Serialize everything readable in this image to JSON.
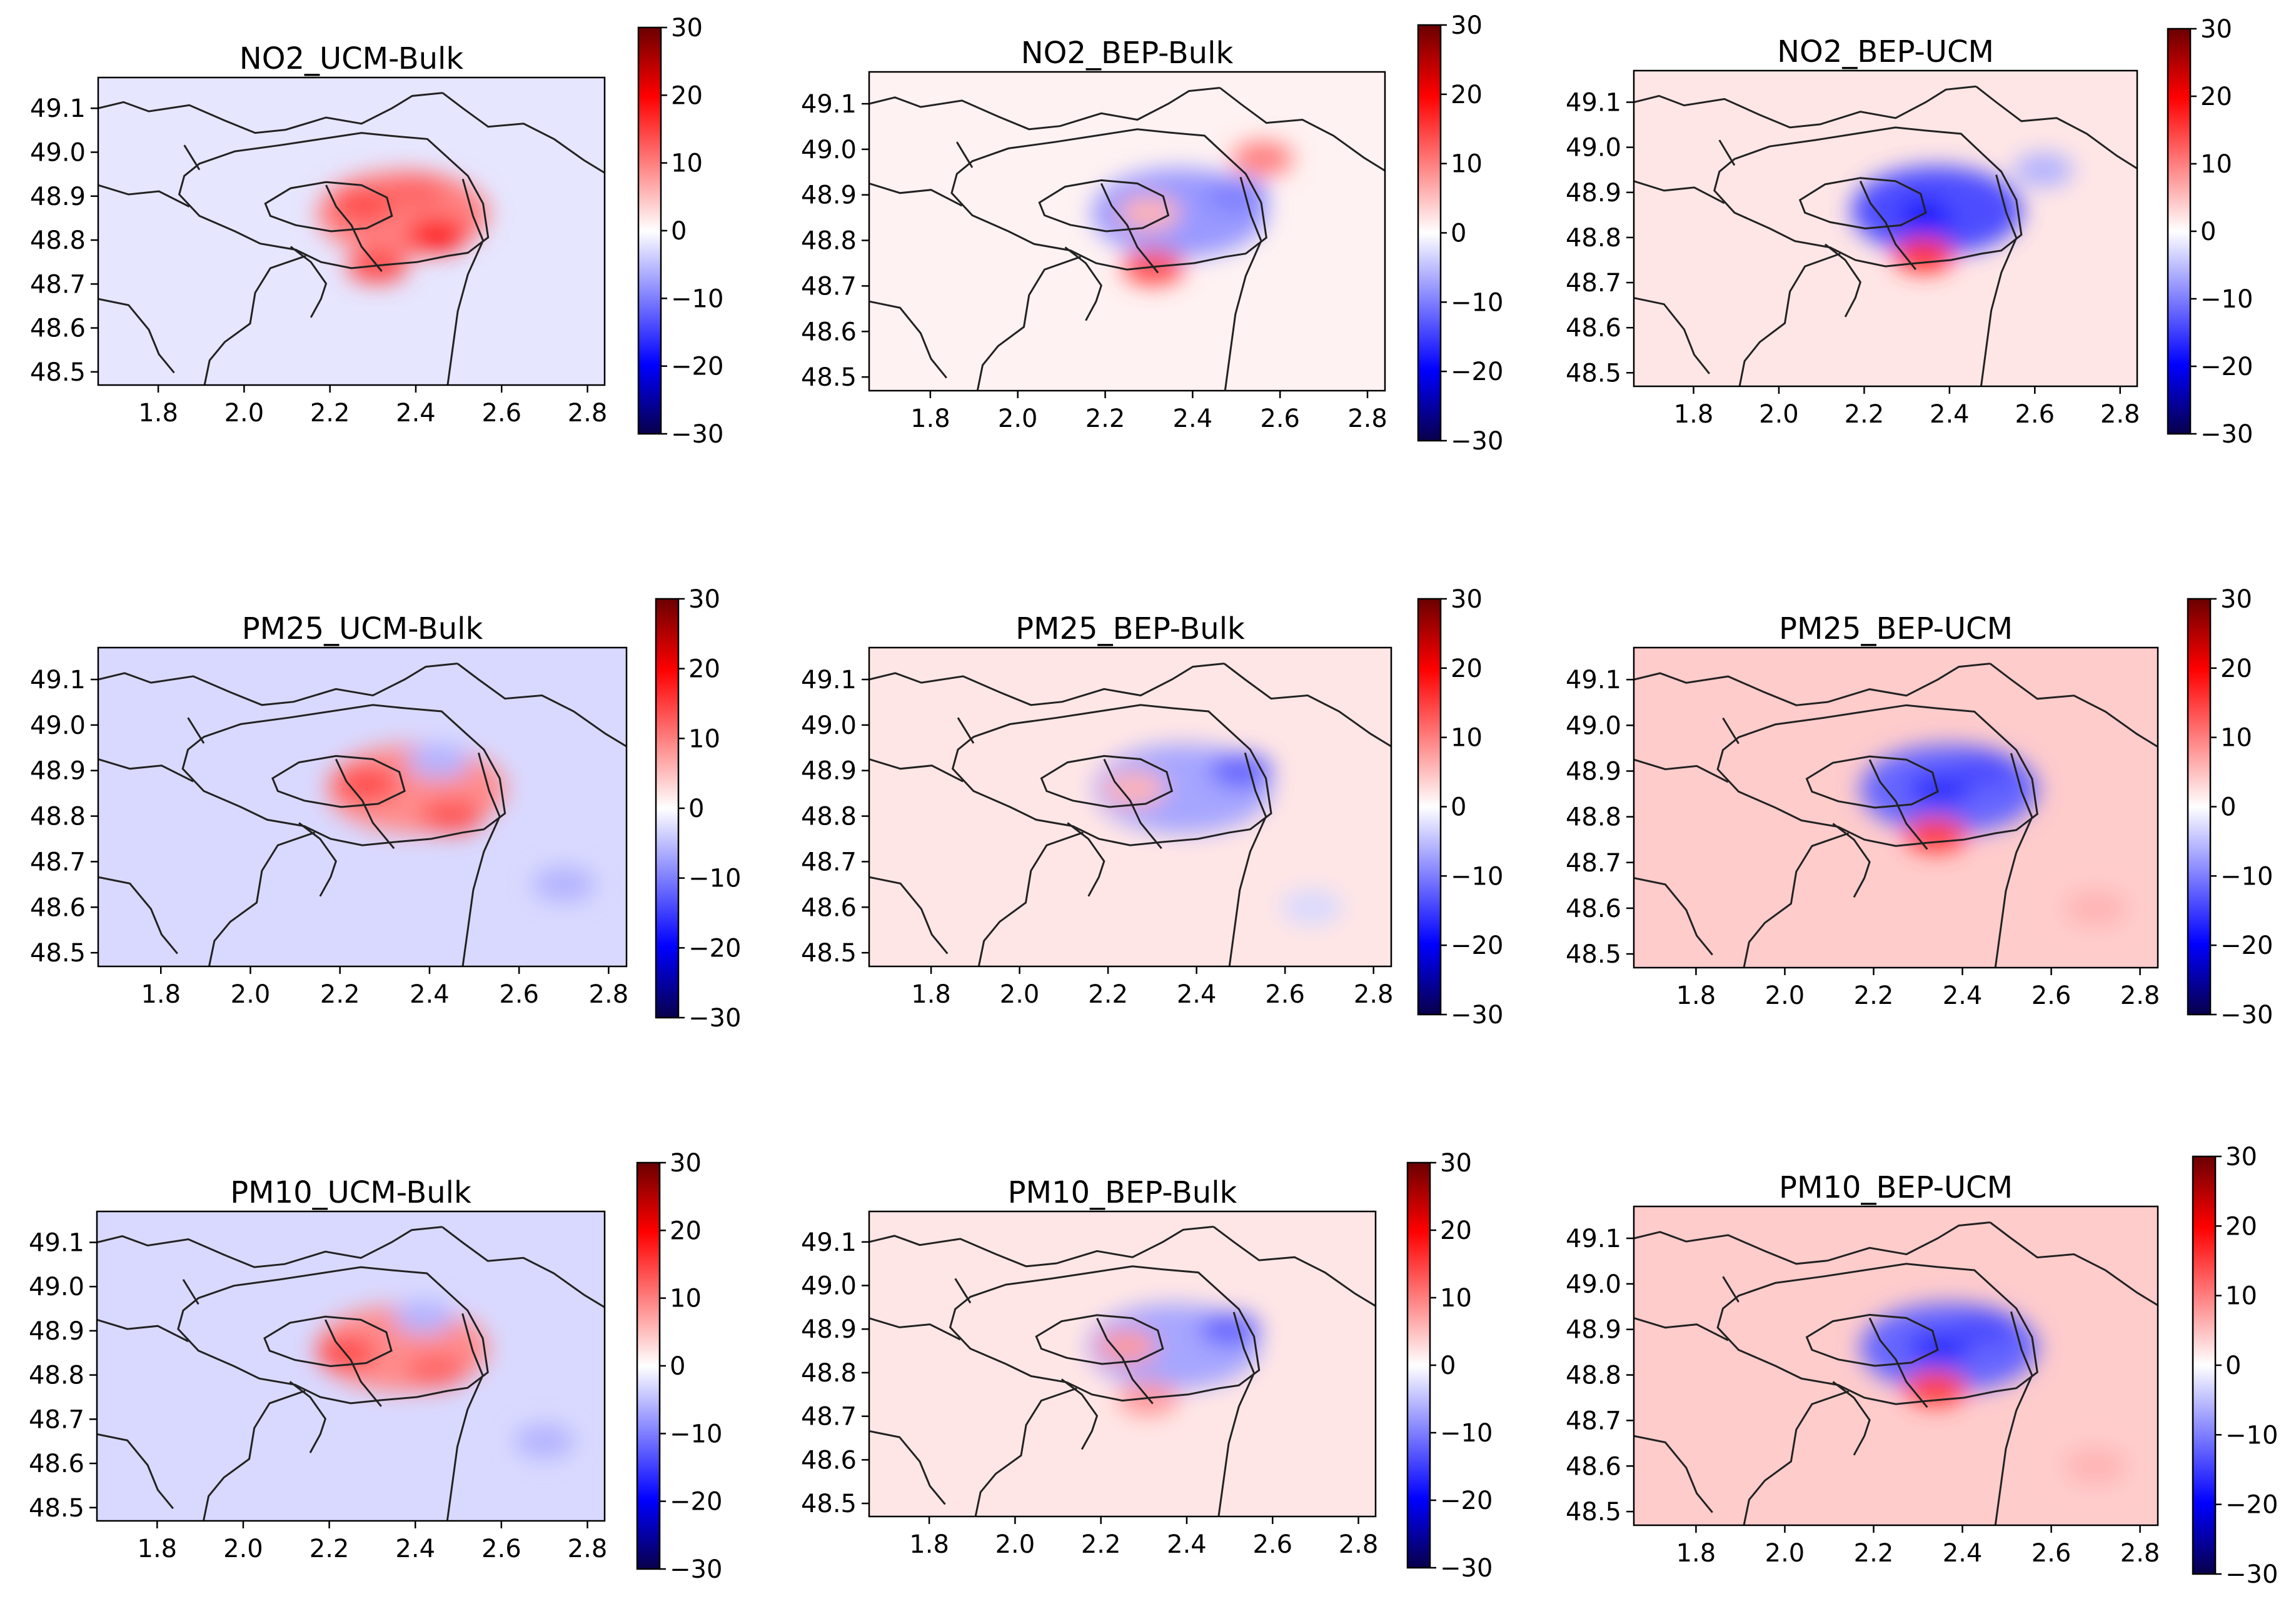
{
  "figure": {
    "description_units": "difference maps, longitude vs latitude"
  },
  "colorbar": {
    "ticks": [
      "30",
      "20",
      "10",
      "0",
      "−10",
      "−20",
      "−30"
    ],
    "values": [
      30,
      20,
      10,
      0,
      -10,
      -20,
      -30
    ],
    "range": [
      -30,
      30
    ],
    "colors": {
      "low": "#08004a",
      "mid": "#ffffff",
      "high": "#6b0000",
      "blue": "#0000ff",
      "red": "#ff0000"
    }
  },
  "chart_data": [
    {
      "type": "heatmap",
      "title": "NO2_UCM-Bulk",
      "pollutant": "NO2",
      "comparison": "UCM-Bulk",
      "xlim": [
        1.66,
        2.84
      ],
      "ylim": [
        48.47,
        49.17
      ],
      "x_ticks": [
        "1.8",
        "2.0",
        "2.2",
        "2.4",
        "2.6",
        "2.8"
      ],
      "y_ticks": [
        "48.5",
        "48.6",
        "48.7",
        "48.8",
        "48.9",
        "49.0",
        "49.1"
      ],
      "clim": [
        -30,
        30
      ],
      "background_value": -2,
      "urban_core_value": 10,
      "core_pattern": "positive",
      "blobs": [
        {
          "x": 2.28,
          "y": 48.88,
          "v": 14
        },
        {
          "x": 2.45,
          "y": 48.81,
          "v": 18
        },
        {
          "x": 2.4,
          "y": 48.91,
          "v": 12
        },
        {
          "x": 2.31,
          "y": 48.74,
          "v": 14
        }
      ]
    },
    {
      "type": "heatmap",
      "title": "NO2_BEP-Bulk",
      "pollutant": "NO2",
      "comparison": "BEP-Bulk",
      "xlim": [
        1.66,
        2.84
      ],
      "ylim": [
        48.47,
        49.17
      ],
      "x_ticks": [
        "1.8",
        "2.0",
        "2.2",
        "2.4",
        "2.6",
        "2.8"
      ],
      "y_ticks": [
        "48.5",
        "48.6",
        "48.7",
        "48.8",
        "48.9",
        "49.0",
        "49.1"
      ],
      "clim": [
        -30,
        30
      ],
      "background_value": 1,
      "urban_core_value": -8,
      "core_pattern": "negative-east",
      "blobs": [
        {
          "x": 2.5,
          "y": 48.9,
          "v": -10
        },
        {
          "x": 2.3,
          "y": 48.86,
          "v": 6
        },
        {
          "x": 2.31,
          "y": 48.74,
          "v": 14
        },
        {
          "x": 2.56,
          "y": 48.98,
          "v": 10
        }
      ]
    },
    {
      "type": "heatmap",
      "title": "NO2_BEP-UCM",
      "pollutant": "NO2",
      "comparison": "BEP-UCM",
      "xlim": [
        1.66,
        2.84
      ],
      "ylim": [
        48.47,
        49.17
      ],
      "x_ticks": [
        "1.8",
        "2.0",
        "2.2",
        "2.4",
        "2.6",
        "2.8"
      ],
      "y_ticks": [
        "48.5",
        "48.6",
        "48.7",
        "48.8",
        "48.9",
        "49.0",
        "49.1"
      ],
      "clim": [
        -30,
        30
      ],
      "background_value": 2,
      "urban_core_value": -14,
      "core_pattern": "negative",
      "blobs": [
        {
          "x": 2.35,
          "y": 48.85,
          "v": -18
        },
        {
          "x": 2.45,
          "y": 48.88,
          "v": -14
        },
        {
          "x": 2.34,
          "y": 48.76,
          "v": 16
        },
        {
          "x": 2.62,
          "y": 48.95,
          "v": -6
        }
      ]
    },
    {
      "type": "heatmap",
      "title": "PM25_UCM-Bulk",
      "pollutant": "PM25",
      "comparison": "UCM-Bulk",
      "xlim": [
        1.66,
        2.84
      ],
      "ylim": [
        48.47,
        49.17
      ],
      "x_ticks": [
        "1.8",
        "2.0",
        "2.2",
        "2.4",
        "2.6",
        "2.8"
      ],
      "y_ticks": [
        "48.5",
        "48.6",
        "48.7",
        "48.8",
        "48.9",
        "49.0",
        "49.1"
      ],
      "clim": [
        -30,
        30
      ],
      "background_value": -3,
      "urban_core_value": 9,
      "core_pattern": "positive",
      "blobs": [
        {
          "x": 2.26,
          "y": 48.87,
          "v": 14
        },
        {
          "x": 2.45,
          "y": 48.8,
          "v": 13
        },
        {
          "x": 2.42,
          "y": 48.92,
          "v": -6
        },
        {
          "x": 2.7,
          "y": 48.65,
          "v": -6
        }
      ]
    },
    {
      "type": "heatmap",
      "title": "PM25_BEP-Bulk",
      "pollutant": "PM25",
      "comparison": "BEP-Bulk",
      "xlim": [
        1.66,
        2.84
      ],
      "ylim": [
        48.47,
        49.17
      ],
      "x_ticks": [
        "1.8",
        "2.0",
        "2.2",
        "2.4",
        "2.6",
        "2.8"
      ],
      "y_ticks": [
        "48.5",
        "48.6",
        "48.7",
        "48.8",
        "48.9",
        "49.0",
        "49.1"
      ],
      "clim": [
        -30,
        30
      ],
      "background_value": 2,
      "urban_core_value": -7,
      "core_pattern": "negative-east",
      "blobs": [
        {
          "x": 2.5,
          "y": 48.9,
          "v": -12
        },
        {
          "x": 2.26,
          "y": 48.86,
          "v": 6
        },
        {
          "x": 2.66,
          "y": 48.6,
          "v": -3
        }
      ]
    },
    {
      "type": "heatmap",
      "title": "PM25_BEP-UCM",
      "pollutant": "PM25",
      "comparison": "BEP-UCM",
      "xlim": [
        1.66,
        2.84
      ],
      "ylim": [
        48.47,
        49.17
      ],
      "x_ticks": [
        "1.8",
        "2.0",
        "2.2",
        "2.4",
        "2.6",
        "2.8"
      ],
      "y_ticks": [
        "48.5",
        "48.6",
        "48.7",
        "48.8",
        "48.9",
        "49.0",
        "49.1"
      ],
      "clim": [
        -30,
        30
      ],
      "background_value": 4,
      "urban_core_value": -12,
      "core_pattern": "negative",
      "blobs": [
        {
          "x": 2.35,
          "y": 48.86,
          "v": -16
        },
        {
          "x": 2.45,
          "y": 48.9,
          "v": -14
        },
        {
          "x": 2.34,
          "y": 48.76,
          "v": 15
        },
        {
          "x": 2.7,
          "y": 48.6,
          "v": 6
        }
      ]
    },
    {
      "type": "heatmap",
      "title": "PM10_UCM-Bulk",
      "pollutant": "PM10",
      "comparison": "UCM-Bulk",
      "xlim": [
        1.66,
        2.84
      ],
      "ylim": [
        48.47,
        49.17
      ],
      "x_ticks": [
        "1.8",
        "2.0",
        "2.2",
        "2.4",
        "2.6",
        "2.8"
      ],
      "y_ticks": [
        "48.5",
        "48.6",
        "48.7",
        "48.8",
        "48.9",
        "49.0",
        "49.1"
      ],
      "clim": [
        -30,
        30
      ],
      "background_value": -3,
      "urban_core_value": 9,
      "core_pattern": "positive",
      "blobs": [
        {
          "x": 2.24,
          "y": 48.85,
          "v": 14
        },
        {
          "x": 2.45,
          "y": 48.81,
          "v": 12
        },
        {
          "x": 2.42,
          "y": 48.93,
          "v": -6
        },
        {
          "x": 2.7,
          "y": 48.65,
          "v": -6
        }
      ]
    },
    {
      "type": "heatmap",
      "title": "PM10_BEP-Bulk",
      "pollutant": "PM10",
      "comparison": "BEP-Bulk",
      "xlim": [
        1.66,
        2.84
      ],
      "ylim": [
        48.47,
        49.17
      ],
      "x_ticks": [
        "1.8",
        "2.0",
        "2.2",
        "2.4",
        "2.6",
        "2.8"
      ],
      "y_ticks": [
        "48.5",
        "48.6",
        "48.7",
        "48.8",
        "48.9",
        "49.0",
        "49.1"
      ],
      "clim": [
        -30,
        30
      ],
      "background_value": 2,
      "urban_core_value": -7,
      "core_pattern": "negative-east",
      "blobs": [
        {
          "x": 2.5,
          "y": 48.9,
          "v": -12
        },
        {
          "x": 2.26,
          "y": 48.86,
          "v": 8
        },
        {
          "x": 2.31,
          "y": 48.74,
          "v": 8
        }
      ]
    },
    {
      "type": "heatmap",
      "title": "PM10_BEP-UCM",
      "pollutant": "PM10",
      "comparison": "BEP-UCM",
      "xlim": [
        1.66,
        2.84
      ],
      "ylim": [
        48.47,
        49.17
      ],
      "x_ticks": [
        "1.8",
        "2.0",
        "2.2",
        "2.4",
        "2.6",
        "2.8"
      ],
      "y_ticks": [
        "48.5",
        "48.6",
        "48.7",
        "48.8",
        "48.9",
        "49.0",
        "49.1"
      ],
      "clim": [
        -30,
        30
      ],
      "background_value": 4,
      "urban_core_value": -12,
      "core_pattern": "negative",
      "blobs": [
        {
          "x": 2.35,
          "y": 48.86,
          "v": -16
        },
        {
          "x": 2.45,
          "y": 48.9,
          "v": -14
        },
        {
          "x": 2.34,
          "y": 48.77,
          "v": 15
        },
        {
          "x": 2.7,
          "y": 48.6,
          "v": 6
        }
      ]
    }
  ]
}
